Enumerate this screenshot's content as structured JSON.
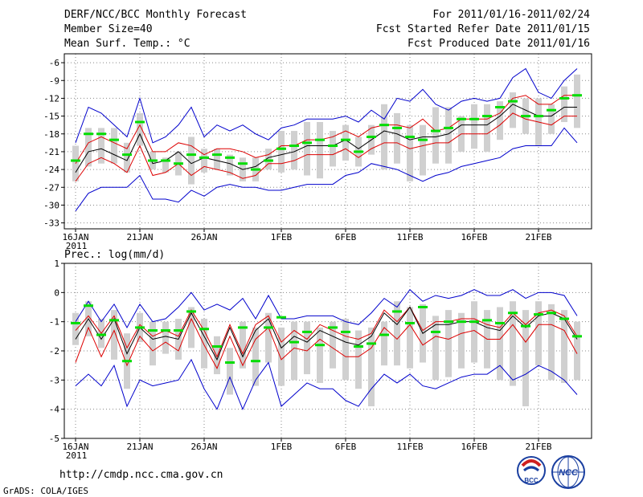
{
  "header": {
    "title": "DERF/NCC/BCC Monthly Forecast",
    "member_size": "Member Size=40",
    "forecast_period": "For 2011/01/16-2011/02/24",
    "started_refer": "Fcst Started Refer Date 2011/01/15",
    "produced": "Fcst Produced Date 2011/01/16"
  },
  "footer": {
    "url": "http://cmdp.ncc.cma.gov.cn",
    "grads": "GrADS: COLA/IGES",
    "logo_bcc": "BCC",
    "logo_ncc": "NCC"
  },
  "colors": {
    "box": "#d0d0d0",
    "minmax": "#0000cc",
    "spread": "#dd0000",
    "mean": "#000000",
    "obs": "#00dd00"
  },
  "chart_data": [
    {
      "type": "line",
      "title": "Mean Surf. Temp.: °C",
      "xlabel": "",
      "ylabel": "",
      "ylim": [
        -34,
        -4.5
      ],
      "yticks": [
        -6,
        -9,
        -12,
        -15,
        -18,
        -21,
        -24,
        -27,
        -30,
        -33
      ],
      "xtick_labels": [
        "16JAN",
        "21JAN",
        "26JAN",
        "1FEB",
        "6FEB",
        "11FEB",
        "16FEB",
        "21FEB"
      ],
      "xtick_days": [
        0,
        5,
        10,
        16,
        21,
        26,
        31,
        36
      ],
      "year_label": "2011",
      "x": [
        0,
        1,
        2,
        3,
        4,
        5,
        6,
        7,
        8,
        9,
        10,
        11,
        12,
        13,
        14,
        15,
        16,
        17,
        18,
        19,
        20,
        21,
        22,
        23,
        24,
        25,
        26,
        27,
        28,
        29,
        30,
        31,
        32,
        33,
        34,
        35,
        36,
        37,
        38,
        39
      ],
      "series": [
        {
          "name": "max",
          "values": [
            -19.5,
            -13.5,
            -14.5,
            -16.5,
            -18.5,
            -12,
            -19.5,
            -18.5,
            -16.5,
            -13.5,
            -18.5,
            -16.5,
            -17.5,
            -16.5,
            -18,
            -19,
            -17,
            -16.5,
            -15.5,
            -15.5,
            -15.5,
            -15,
            -16,
            -14,
            -15.5,
            -12,
            -12.5,
            -10.5,
            -13,
            -14,
            -12.5,
            -12,
            -12.5,
            -12,
            -8.5,
            -7,
            -11,
            -12,
            -9,
            -7
          ]
        },
        {
          "name": "upper",
          "values": [
            -23,
            -19.5,
            -18.5,
            -19.5,
            -20.5,
            -16.5,
            -21,
            -21,
            -19.5,
            -20,
            -21.5,
            -20.5,
            -20.5,
            -21,
            -22,
            -21.5,
            -20,
            -20,
            -19,
            -19,
            -18.5,
            -17.5,
            -18.5,
            -17,
            -16.5,
            -16.5,
            -17,
            -15.5,
            -17.5,
            -17,
            -15.5,
            -15.5,
            -15.5,
            -14.5,
            -12,
            -11.5,
            -13,
            -13,
            -11.5,
            -11.5
          ]
        },
        {
          "name": "mean",
          "values": [
            -24.5,
            -21,
            -20.5,
            -21.5,
            -22.5,
            -18,
            -23,
            -22.5,
            -21,
            -23,
            -22,
            -22.5,
            -23,
            -24,
            -23.5,
            -22,
            -21.5,
            -21,
            -20,
            -20,
            -20,
            -19,
            -20.5,
            -19,
            -17.5,
            -18,
            -19,
            -18.5,
            -18.5,
            -18,
            -16.5,
            -16.5,
            -16.5,
            -15,
            -13,
            -14,
            -15,
            -15,
            -13.5,
            -13.5
          ]
        },
        {
          "name": "lower",
          "values": [
            -26,
            -23,
            -22,
            -23,
            -24.5,
            -20,
            -25,
            -24.5,
            -23,
            -25,
            -23.5,
            -24,
            -24.5,
            -25.5,
            -25,
            -23,
            -23,
            -22.5,
            -21.5,
            -21.5,
            -21.5,
            -20.5,
            -22,
            -20.5,
            -19.5,
            -19.5,
            -20.5,
            -20,
            -19.5,
            -19.5,
            -18,
            -18,
            -18,
            -16.5,
            -14.5,
            -15.5,
            -16,
            -16.5,
            -15,
            -15
          ]
        },
        {
          "name": "min",
          "values": [
            -31,
            -28,
            -27,
            -27,
            -27,
            -25,
            -29,
            -29,
            -29.5,
            -27.5,
            -28.5,
            -27,
            -26.5,
            -27,
            -27,
            -27.5,
            -27.5,
            -27,
            -26.5,
            -26.5,
            -26.5,
            -25,
            -24.5,
            -23,
            -23.5,
            -24,
            -25,
            -26,
            -25,
            -24.5,
            -23.5,
            -23,
            -22.5,
            -22,
            -20.5,
            -20,
            -20,
            -20,
            -17,
            -19.5
          ]
        },
        {
          "name": "observed",
          "values": [
            -22.5,
            -18,
            -18,
            -19,
            -21.5,
            -16,
            -22.5,
            -22.5,
            -23,
            -21.5,
            -22,
            -21.5,
            -22,
            -23,
            -24,
            -22.5,
            -20.5,
            -20,
            -19.5,
            -19,
            -20,
            -19,
            -21,
            -18.5,
            -16.5,
            -17,
            -18.5,
            -19,
            -17.5,
            -17,
            -15.5,
            -15.5,
            -15,
            -13.5,
            -12.5,
            -15,
            -15,
            -14,
            -12,
            -11.5
          ]
        },
        {
          "name": "box_top",
          "values": [
            -20,
            -17,
            -17,
            -17,
            -19.5,
            -14.5,
            -21,
            -22,
            -21,
            -18.5,
            -20.5,
            -20.5,
            -21.5,
            -22,
            -22,
            -20.5,
            -17.5,
            -17.5,
            -16,
            -16,
            -17.5,
            -16.5,
            -18.5,
            -16.5,
            -13,
            -14.5,
            -16.5,
            -16.5,
            -13.5,
            -13.5,
            -15,
            -13,
            -13,
            -12.5,
            -11,
            -12,
            -12,
            -13,
            -10,
            -8
          ]
        },
        {
          "name": "box_bottom",
          "values": [
            -26,
            -23.5,
            -23,
            -23,
            -24.5,
            -20,
            -24,
            -24.5,
            -25,
            -26.5,
            -24.5,
            -24,
            -25,
            -26,
            -26,
            -24,
            -24.5,
            -24,
            -25,
            -25.5,
            -23.5,
            -22.5,
            -23.5,
            -21.5,
            -24,
            -23,
            -26,
            -25,
            -23,
            -23,
            -21,
            -20.5,
            -21,
            -19,
            -17,
            -18,
            -20,
            -18,
            -16,
            -17
          ]
        }
      ]
    },
    {
      "type": "line",
      "title": "Prec.: log(mm/d)",
      "xlabel": "",
      "ylabel": "",
      "ylim": [
        -5,
        1
      ],
      "yticks": [
        1,
        0,
        -1,
        -2,
        -3,
        -4,
        -5
      ],
      "xtick_labels": [
        "16JAN",
        "21JAN",
        "26JAN",
        "1FEB",
        "6FEB",
        "11FEB",
        "16FEB",
        "21FEB"
      ],
      "xtick_days": [
        0,
        5,
        10,
        16,
        21,
        26,
        31,
        36
      ],
      "year_label": "2011",
      "x": [
        0,
        1,
        2,
        3,
        4,
        5,
        6,
        7,
        8,
        9,
        10,
        11,
        12,
        13,
        14,
        15,
        16,
        17,
        18,
        19,
        20,
        21,
        22,
        23,
        24,
        25,
        26,
        27,
        28,
        29,
        30,
        31,
        32,
        33,
        34,
        35,
        36,
        37,
        38,
        39
      ],
      "series": [
        {
          "name": "max",
          "values": [
            -1,
            -0.3,
            -1,
            -0.4,
            -1.2,
            -0.4,
            -1,
            -0.9,
            -0.5,
            0,
            -0.6,
            -0.4,
            -0.6,
            -0.2,
            -0.9,
            -0.1,
            -0.9,
            -0.9,
            -0.8,
            -0.8,
            -0.8,
            -1,
            -1.1,
            -0.7,
            -0.2,
            -0.5,
            0.1,
            -0.3,
            -0.1,
            -0.2,
            -0.1,
            0.1,
            -0.1,
            -0.1,
            0.1,
            -0.2,
            0,
            0,
            -0.1,
            -0.8
          ]
        },
        {
          "name": "upper",
          "values": [
            -1.3,
            -0.8,
            -1.4,
            -0.8,
            -1.9,
            -1.1,
            -1.5,
            -1.3,
            -1.5,
            -0.6,
            -1.3,
            -2.2,
            -1.1,
            -2.1,
            -1.1,
            -0.8,
            -1.7,
            -1.3,
            -1.6,
            -1.1,
            -1.3,
            -1.5,
            -1.6,
            -1.4,
            -0.6,
            -1,
            -0.5,
            -1.3,
            -1,
            -1,
            -0.9,
            -0.9,
            -1.1,
            -1.2,
            -0.7,
            -1.1,
            -0.7,
            -0.6,
            -0.8,
            -1.5
          ]
        },
        {
          "name": "mean",
          "values": [
            -1.6,
            -0.9,
            -1.6,
            -0.9,
            -2.1,
            -1.2,
            -1.6,
            -1.5,
            -1.6,
            -0.7,
            -1.5,
            -2.3,
            -1.2,
            -2.2,
            -1.3,
            -0.9,
            -1.9,
            -1.5,
            -1.7,
            -1.3,
            -1.5,
            -1.7,
            -1.8,
            -1.5,
            -0.7,
            -1.1,
            -0.5,
            -1.4,
            -1.1,
            -1.1,
            -1,
            -1,
            -1.2,
            -1.3,
            -0.8,
            -1.2,
            -0.8,
            -0.7,
            -0.9,
            -1.6
          ]
        },
        {
          "name": "lower",
          "values": [
            -2.4,
            -1.2,
            -2.2,
            -1.3,
            -2.5,
            -1.5,
            -2,
            -1.7,
            -2,
            -0.9,
            -1.8,
            -2.6,
            -1.5,
            -2.5,
            -1.6,
            -1.2,
            -2.3,
            -1.9,
            -2,
            -1.6,
            -1.9,
            -2.2,
            -2.2,
            -1.9,
            -1.2,
            -1.6,
            -1.1,
            -1.8,
            -1.5,
            -1.6,
            -1.4,
            -1.3,
            -1.6,
            -1.6,
            -1.1,
            -1.7,
            -1.1,
            -1.1,
            -1.3,
            -2.1
          ]
        },
        {
          "name": "min",
          "values": [
            -3.2,
            -2.8,
            -3.2,
            -2.5,
            -3.9,
            -3,
            -3.2,
            -3.1,
            -3,
            -2.3,
            -3.3,
            -4,
            -2.9,
            -4,
            -3,
            -2.4,
            -3.9,
            -3.5,
            -3.1,
            -3.3,
            -3.3,
            -3.7,
            -3.9,
            -3.3,
            -2.8,
            -3.1,
            -2.8,
            -3.2,
            -3.3,
            -3.1,
            -2.9,
            -2.8,
            -2.8,
            -2.5,
            -3,
            -2.8,
            -2.5,
            -2.7,
            -3,
            -3.5
          ]
        },
        {
          "name": "observed",
          "values": [
            -1.05,
            -0.45,
            -1.45,
            -0.95,
            -2.35,
            -1.2,
            -1.3,
            -1.3,
            -1.3,
            -0.65,
            -1.25,
            -1.85,
            -2.4,
            -1.2,
            -2.35,
            -1.2,
            -0.85,
            -1.7,
            -1.35,
            -1.8,
            -1.2,
            -1.35,
            -1.85,
            -1.75,
            -1.45,
            -0.65,
            -1.05,
            -0.5,
            -1.35,
            -1,
            -1,
            -1,
            -0.95,
            -1.05,
            -0.7,
            -1.15,
            -0.75,
            -0.7,
            -0.9,
            -1.5
          ]
        },
        {
          "name": "box_top",
          "values": [
            -0.7,
            -0.3,
            -0.9,
            -0.6,
            -1.4,
            -0.7,
            -1,
            -1,
            -0.9,
            -0.5,
            -0.9,
            -1.5,
            -1.9,
            -1,
            -1.2,
            -0.7,
            -1.2,
            -1,
            -1,
            -1.2,
            -1,
            -0.9,
            -1.3,
            -1.2,
            -1,
            -0.3,
            -0.5,
            -0.4,
            -0.8,
            -0.6,
            -0.7,
            -0.3,
            -0.6,
            -0.5,
            -0.3,
            -0.6,
            -0.3,
            -0.4,
            -0.6,
            -1
          ]
        },
        {
          "name": "box_bottom",
          "values": [
            -1.8,
            -1.5,
            -1.9,
            -2.3,
            -3.3,
            -1.7,
            -2.5,
            -2.1,
            -2.3,
            -1.9,
            -2.6,
            -2.8,
            -3.5,
            -2.6,
            -3.2,
            -2.4,
            -3.2,
            -3,
            -2.8,
            -3.1,
            -2.6,
            -3,
            -3.3,
            -3.9,
            -2.5,
            -2.5,
            -2.6,
            -2.4,
            -3,
            -2.9,
            -2.6,
            -2.4,
            -2.6,
            -3,
            -3.2,
            -3.9,
            -2.5,
            -3,
            -3.1,
            -3
          ]
        }
      ]
    }
  ]
}
